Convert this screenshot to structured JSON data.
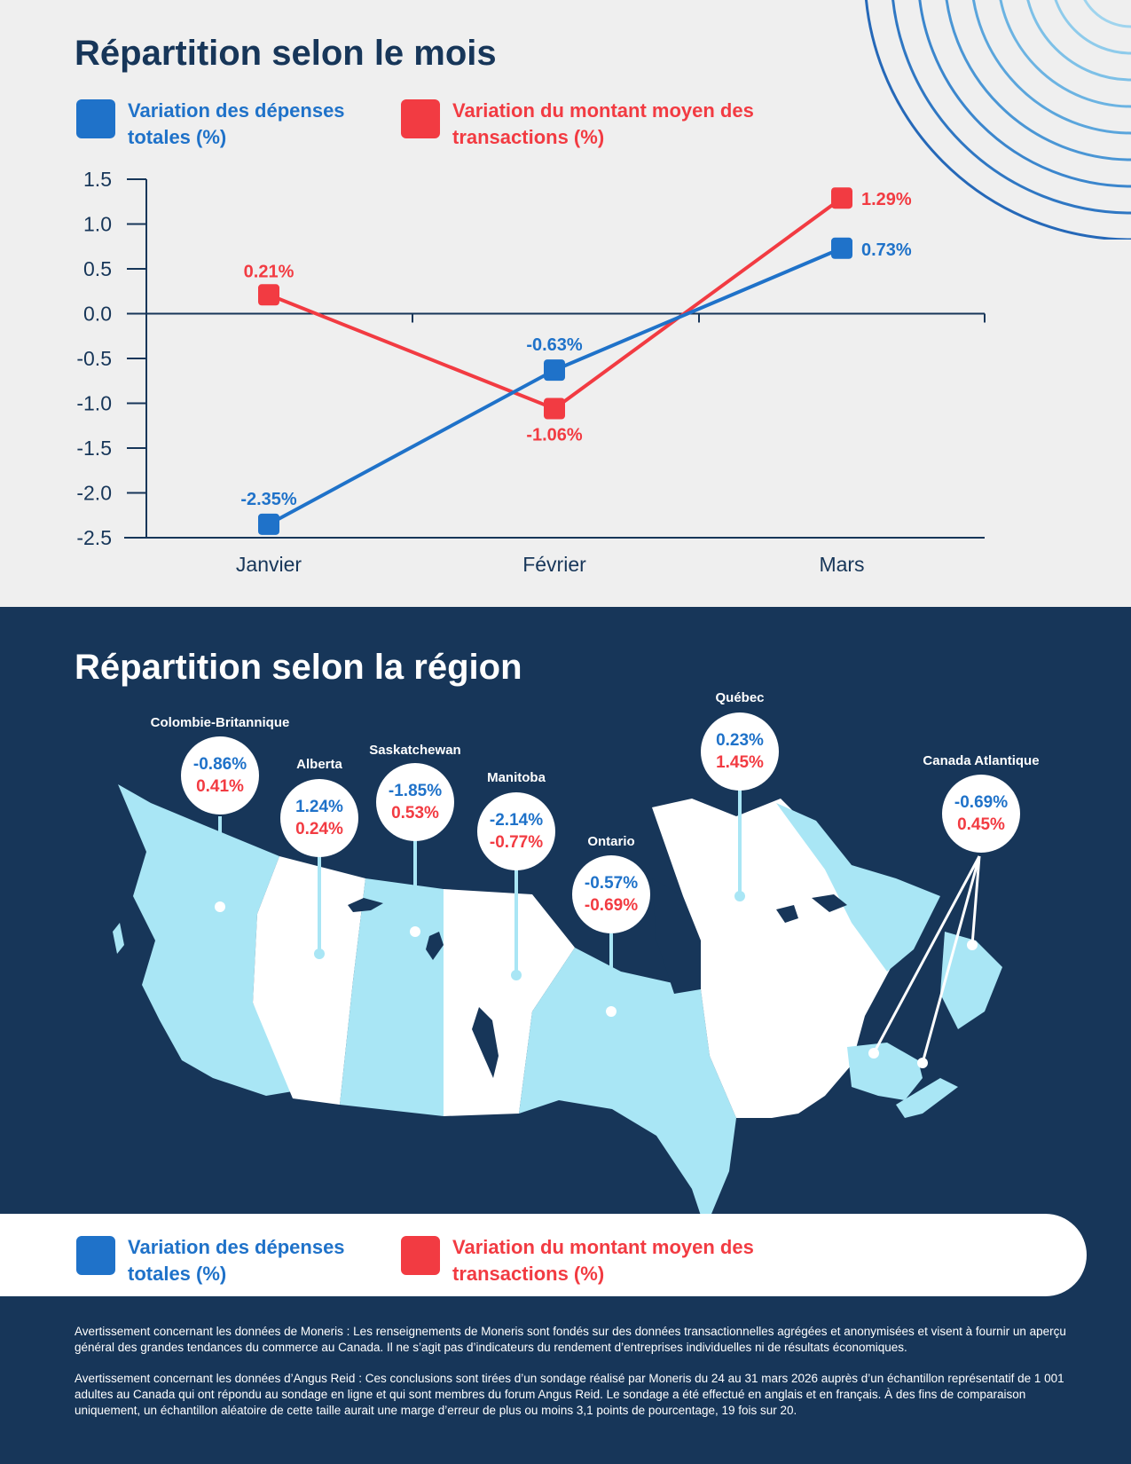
{
  "top_section": {
    "title": "Répartition selon le mois",
    "legend": {
      "total_spending": "Variation des dépenses totales (%)",
      "avg_transaction": "Variation du montant moyen des transactions (%)"
    }
  },
  "colors": {
    "blue": "#1f72c9",
    "red": "#f23b42",
    "navy": "#173659",
    "light_blue": "#a9e6f5",
    "white": "#ffffff"
  },
  "chart_data": {
    "type": "line",
    "title": "Répartition selon le mois",
    "categories": [
      "Janvier",
      "Février",
      "Mars"
    ],
    "yticks": [
      "1.5",
      "1.0",
      "0.5",
      "0.0",
      "-0.5",
      "-1.0",
      "-1.5",
      "-2.0",
      "-2.5"
    ],
    "ylim": [
      -2.5,
      1.5
    ],
    "series": [
      {
        "name": "Variation des dépenses totales (%)",
        "color": "#1f72c9",
        "values": [
          -2.35,
          -0.63,
          0.73
        ],
        "labels": [
          "-2.35%",
          "-0.63%",
          "0.73%"
        ]
      },
      {
        "name": "Variation du montant moyen des transactions (%)",
        "color": "#f23b42",
        "values": [
          0.21,
          -1.06,
          1.29
        ],
        "labels": [
          "0.21%",
          "-1.06%",
          "1.29%"
        ]
      }
    ]
  },
  "bottom_section": {
    "title": "Répartition selon la région",
    "regions": [
      {
        "name": "Colombie-Britannique",
        "total": "-0.86%",
        "avg": "0.41%"
      },
      {
        "name": "Alberta",
        "total": "1.24%",
        "avg": "0.24%"
      },
      {
        "name": "Saskatchewan",
        "total": "-1.85%",
        "avg": "0.53%"
      },
      {
        "name": "Manitoba",
        "total": "-2.14%",
        "avg": "-0.77%"
      },
      {
        "name": "Ontario",
        "total": "-0.57%",
        "avg": "-0.69%"
      },
      {
        "name": "Québec",
        "total": "0.23%",
        "avg": "1.45%"
      },
      {
        "name": "Canada Atlantique",
        "total": "-0.69%",
        "avg": "0.45%"
      }
    ],
    "legend": {
      "total_spending": "Variation des dépenses totales (%)",
      "avg_transaction": "Variation du montant moyen des transactions (%)"
    }
  },
  "disclaimers": {
    "moneris": "Avertissement concernant les données de Moneris : Les renseignements de Moneris sont fondés sur des données transactionnelles agrégées et anonymisées et visent à fournir un aperçu général des grandes tendances du commerce au Canada. Il ne s’agit pas d’indicateurs du rendement d’entreprises individuelles ni de résultats économiques.",
    "angus_reid": "Avertissement concernant les données d’Angus Reid : Ces conclusions sont tirées d’un sondage réalisé par Moneris du 24 au 31 mars 2026 auprès d’un échantillon représentatif de 1 001 adultes au Canada qui ont répondu au sondage en ligne et qui sont membres du forum Angus Reid. Le sondage a été effectué en anglais et en français. À des fins de comparaison uniquement, un échantillon aléatoire de cette taille aurait une marge d’erreur de plus ou moins 3,1 points de pourcentage, 19 fois sur 20."
  }
}
